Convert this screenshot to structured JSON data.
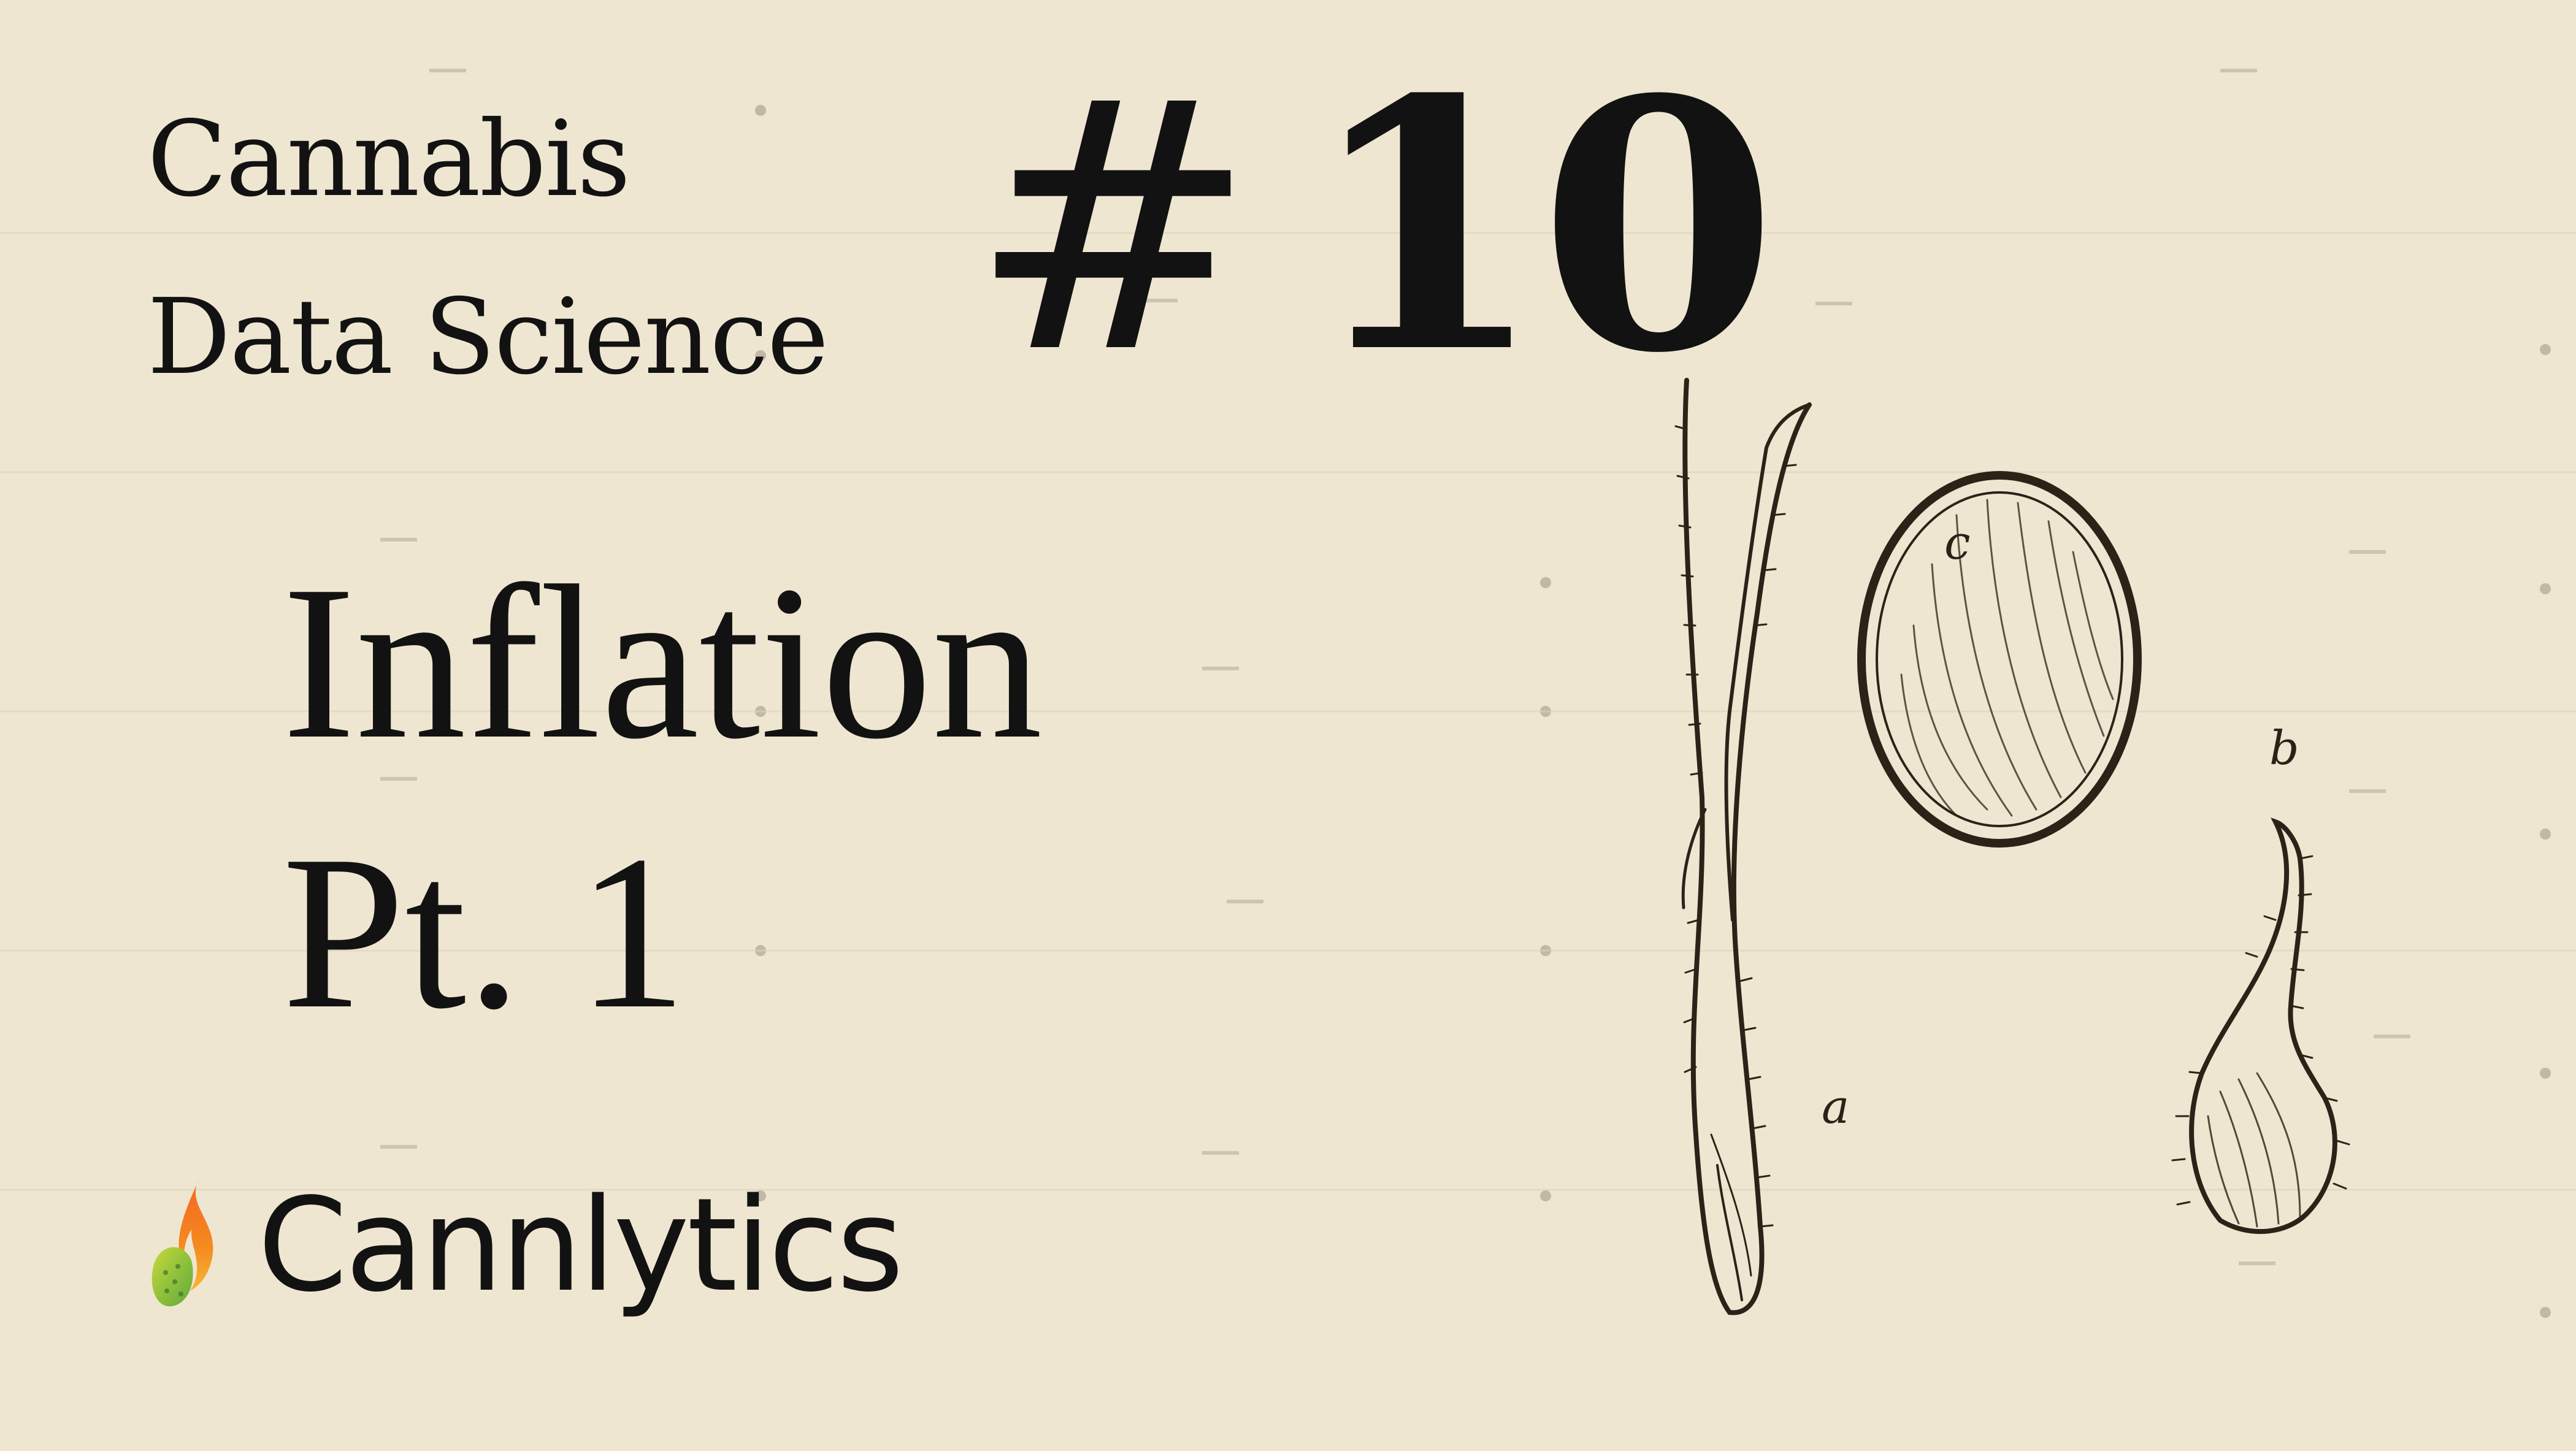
{
  "series": {
    "line1": "Cannabis",
    "line2": "Data Science"
  },
  "episode": {
    "hash": "#",
    "number": "10"
  },
  "topic": {
    "line1": "Inflation",
    "line2": "Pt. 1"
  },
  "brand": {
    "name": "Cannlytics",
    "logo_icon": "flame-leaf-logo-icon",
    "colors": {
      "flame_orange": "#f26522",
      "flame_yellow": "#f7b733",
      "leaf_green": "#8cc63f"
    }
  },
  "illustration": {
    "icon": "botanical-seed-illustration",
    "labels": {
      "a": "a",
      "b": "b",
      "c": "c"
    }
  },
  "colors": {
    "paper": "#efe6d1",
    "ink": "#121212"
  }
}
